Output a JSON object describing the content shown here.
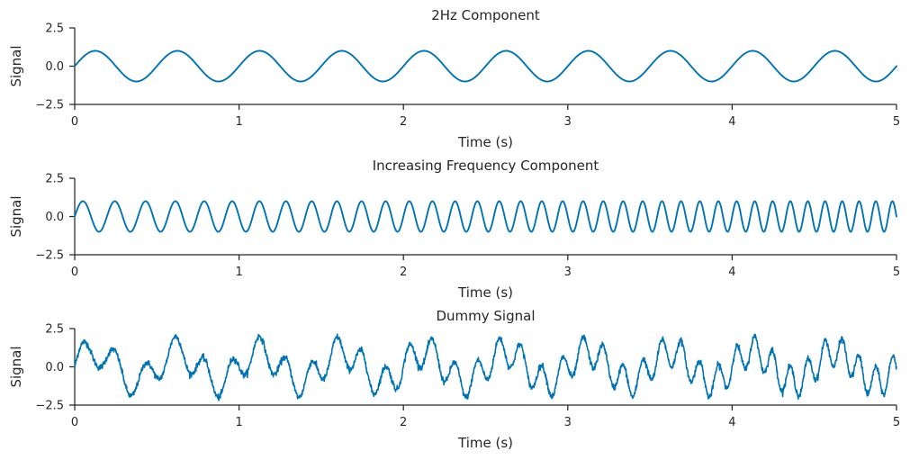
{
  "chart_data": [
    {
      "type": "line",
      "title": "2Hz Component",
      "xlabel": "Time (s)",
      "ylabel": "Signal",
      "xlim": [
        0,
        5
      ],
      "ylim": [
        -2.5,
        2.5
      ],
      "xticks": [
        0,
        1,
        2,
        3,
        4,
        5
      ],
      "yticks": [
        -2.5,
        0.0,
        2.5
      ],
      "xtick_labels": [
        "0",
        "1",
        "2",
        "3",
        "4",
        "5"
      ],
      "ytick_labels": [
        "−2.5",
        "0.0",
        "2.5"
      ],
      "color": "#0173b2",
      "grid": false,
      "signal": "sin(2*pi*2*t)",
      "frequency_hz": 2,
      "amplitude": 1
    },
    {
      "type": "line",
      "title": "Increasing Frequency Component",
      "xlabel": "Time (s)",
      "ylabel": "Signal",
      "xlim": [
        0,
        5
      ],
      "ylim": [
        -2.5,
        2.5
      ],
      "xticks": [
        0,
        1,
        2,
        3,
        4,
        5
      ],
      "yticks": [
        -2.5,
        0.0,
        2.5
      ],
      "xtick_labels": [
        "0",
        "1",
        "2",
        "3",
        "4",
        "5"
      ],
      "ytick_labels": [
        "−2.5",
        "0.0",
        "2.5"
      ],
      "color": "#0173b2",
      "grid": false,
      "signal": "chirp: sin(2*pi*(f0*t + 0.5*k*t^2))",
      "start_frequency_hz": 5,
      "end_frequency_hz": 10,
      "amplitude": 1
    },
    {
      "type": "line",
      "title": "Dummy Signal",
      "xlabel": "Time (s)",
      "ylabel": "Signal",
      "xlim": [
        0,
        5
      ],
      "ylim": [
        -2.5,
        2.5
      ],
      "xticks": [
        0,
        1,
        2,
        3,
        4,
        5
      ],
      "yticks": [
        -2.5,
        0.0,
        2.5
      ],
      "xtick_labels": [
        "0",
        "1",
        "2",
        "3",
        "4",
        "5"
      ],
      "ytick_labels": [
        "−2.5",
        "0.0",
        "2.5"
      ],
      "color": "#0173b2",
      "grid": false,
      "signal": "2Hz component + increasing frequency component + noise",
      "noise_amplitude": 0.1
    }
  ]
}
